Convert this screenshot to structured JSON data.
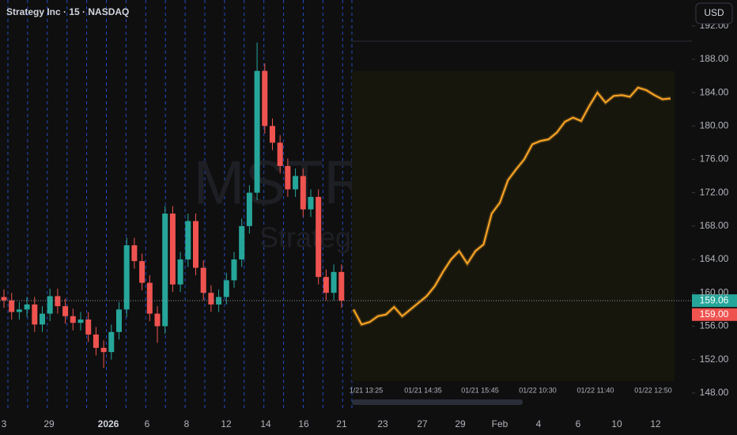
{
  "chart_data": {
    "type": "candlestick",
    "title": "Strategy Inc · 15 · NASDAQ",
    "currency": "USD",
    "watermark": {
      "symbol": "MSTR",
      "name": "Strategy"
    },
    "up_color": "#26a69a",
    "down_color": "#ef5350",
    "ylim": [
      145.8,
      195.1
    ],
    "yticks": [
      {
        "value": 148,
        "label": "148.00"
      },
      {
        "value": 152,
        "label": "152.00"
      },
      {
        "value": 156,
        "label": "156.00"
      },
      {
        "value": 160,
        "label": "160.00"
      },
      {
        "value": 164,
        "label": "164.00"
      },
      {
        "value": 168,
        "label": "168.00"
      },
      {
        "value": 172,
        "label": "172.00"
      },
      {
        "value": 176,
        "label": "176.00"
      },
      {
        "value": 180,
        "label": "180.00"
      },
      {
        "value": 184,
        "label": "184.00"
      },
      {
        "value": 188,
        "label": "188.00"
      },
      {
        "value": 192,
        "label": "192.00"
      }
    ],
    "x_labels": [
      "3",
      "29",
      "2026",
      "6",
      "8",
      "12",
      "14",
      "16",
      "21",
      "23",
      "27",
      "29",
      "Feb",
      "4",
      "6",
      "10",
      "12"
    ],
    "open": [
      159.5,
      159.1,
      157.7,
      158.0,
      158.6,
      156.2,
      157.5,
      159.6,
      158.4,
      157.2,
      156.4,
      156.8,
      155.0,
      153.4,
      152.9,
      155.3,
      158.0,
      165.7,
      163.8,
      161.2,
      157.5,
      156.0,
      169.5,
      161.0,
      164.0,
      168.6,
      163.0,
      160.0,
      158.6,
      159.5,
      161.5,
      164.0,
      168.0,
      172.0,
      186.6,
      180.0,
      178.0,
      175.2,
      172.4,
      174.0,
      170.0,
      171.5,
      161.9,
      160.0,
      162.5
    ],
    "high": [
      160.4,
      160.0,
      158.9,
      159.5,
      159.5,
      158.4,
      160.5,
      160.5,
      159.3,
      158.1,
      157.7,
      157.7,
      155.9,
      154.3,
      156.2,
      158.9,
      166.6,
      166.6,
      164.7,
      162.1,
      158.4,
      170.4,
      170.4,
      164.9,
      169.5,
      169.5,
      163.9,
      160.9,
      160.4,
      162.4,
      164.9,
      168.9,
      172.9,
      190.0,
      187.5,
      180.9,
      178.9,
      176.1,
      174.9,
      174.9,
      172.4,
      172.4,
      162.8,
      163.4,
      163.4
    ],
    "low": [
      158.2,
      156.8,
      156.8,
      157.1,
      155.3,
      155.3,
      156.6,
      157.5,
      156.3,
      155.5,
      155.5,
      154.1,
      152.5,
      151.0,
      152.0,
      154.4,
      157.1,
      162.9,
      160.3,
      156.6,
      154.0,
      155.1,
      160.1,
      160.1,
      163.1,
      162.1,
      159.1,
      157.7,
      157.7,
      158.6,
      160.6,
      163.1,
      167.1,
      171.1,
      179.1,
      177.1,
      174.3,
      171.5,
      171.5,
      169.1,
      169.1,
      161.0,
      159.1,
      159.1,
      158.2
    ],
    "close": [
      159.1,
      157.7,
      158.0,
      158.6,
      156.2,
      157.5,
      159.6,
      158.4,
      157.2,
      156.4,
      156.8,
      155.0,
      153.4,
      152.9,
      155.3,
      158.0,
      165.7,
      163.8,
      161.2,
      157.5,
      156.0,
      169.5,
      161.0,
      164.0,
      168.6,
      163.0,
      160.0,
      158.6,
      159.5,
      161.5,
      164.0,
      168.0,
      172.0,
      186.6,
      180.0,
      178.0,
      175.2,
      172.4,
      174.0,
      170.0,
      171.5,
      161.9,
      160.0,
      162.5,
      159.06
    ],
    "price_lines": [
      159.06,
      {
        "value": 159,
        "label": "159.00"
      }
    ],
    "price_line_colors": [
      "#26a69a",
      "#ef5350"
    ],
    "forecast": {
      "color": "#ffa726",
      "x_labels": [
        "1/21 13:25",
        "01/21 14:35",
        "01/21 15:45",
        "01/22 10:30",
        "01/22 11:40",
        "01/22 12:50"
      ],
      "values": [
        158.0,
        156.2,
        156.5,
        157.2,
        157.4,
        158.3,
        157.2,
        158.0,
        158.8,
        159.6,
        160.8,
        162.5,
        164.0,
        165.0,
        163.5,
        165.0,
        165.8,
        169.5,
        170.8,
        173.5,
        174.8,
        176.0,
        177.8,
        178.2,
        178.4,
        179.2,
        180.5,
        181.0,
        180.6,
        182.4,
        184.0,
        182.8,
        183.6,
        183.7,
        183.5,
        184.6,
        184.3,
        183.7,
        183.2,
        183.3
      ]
    }
  }
}
